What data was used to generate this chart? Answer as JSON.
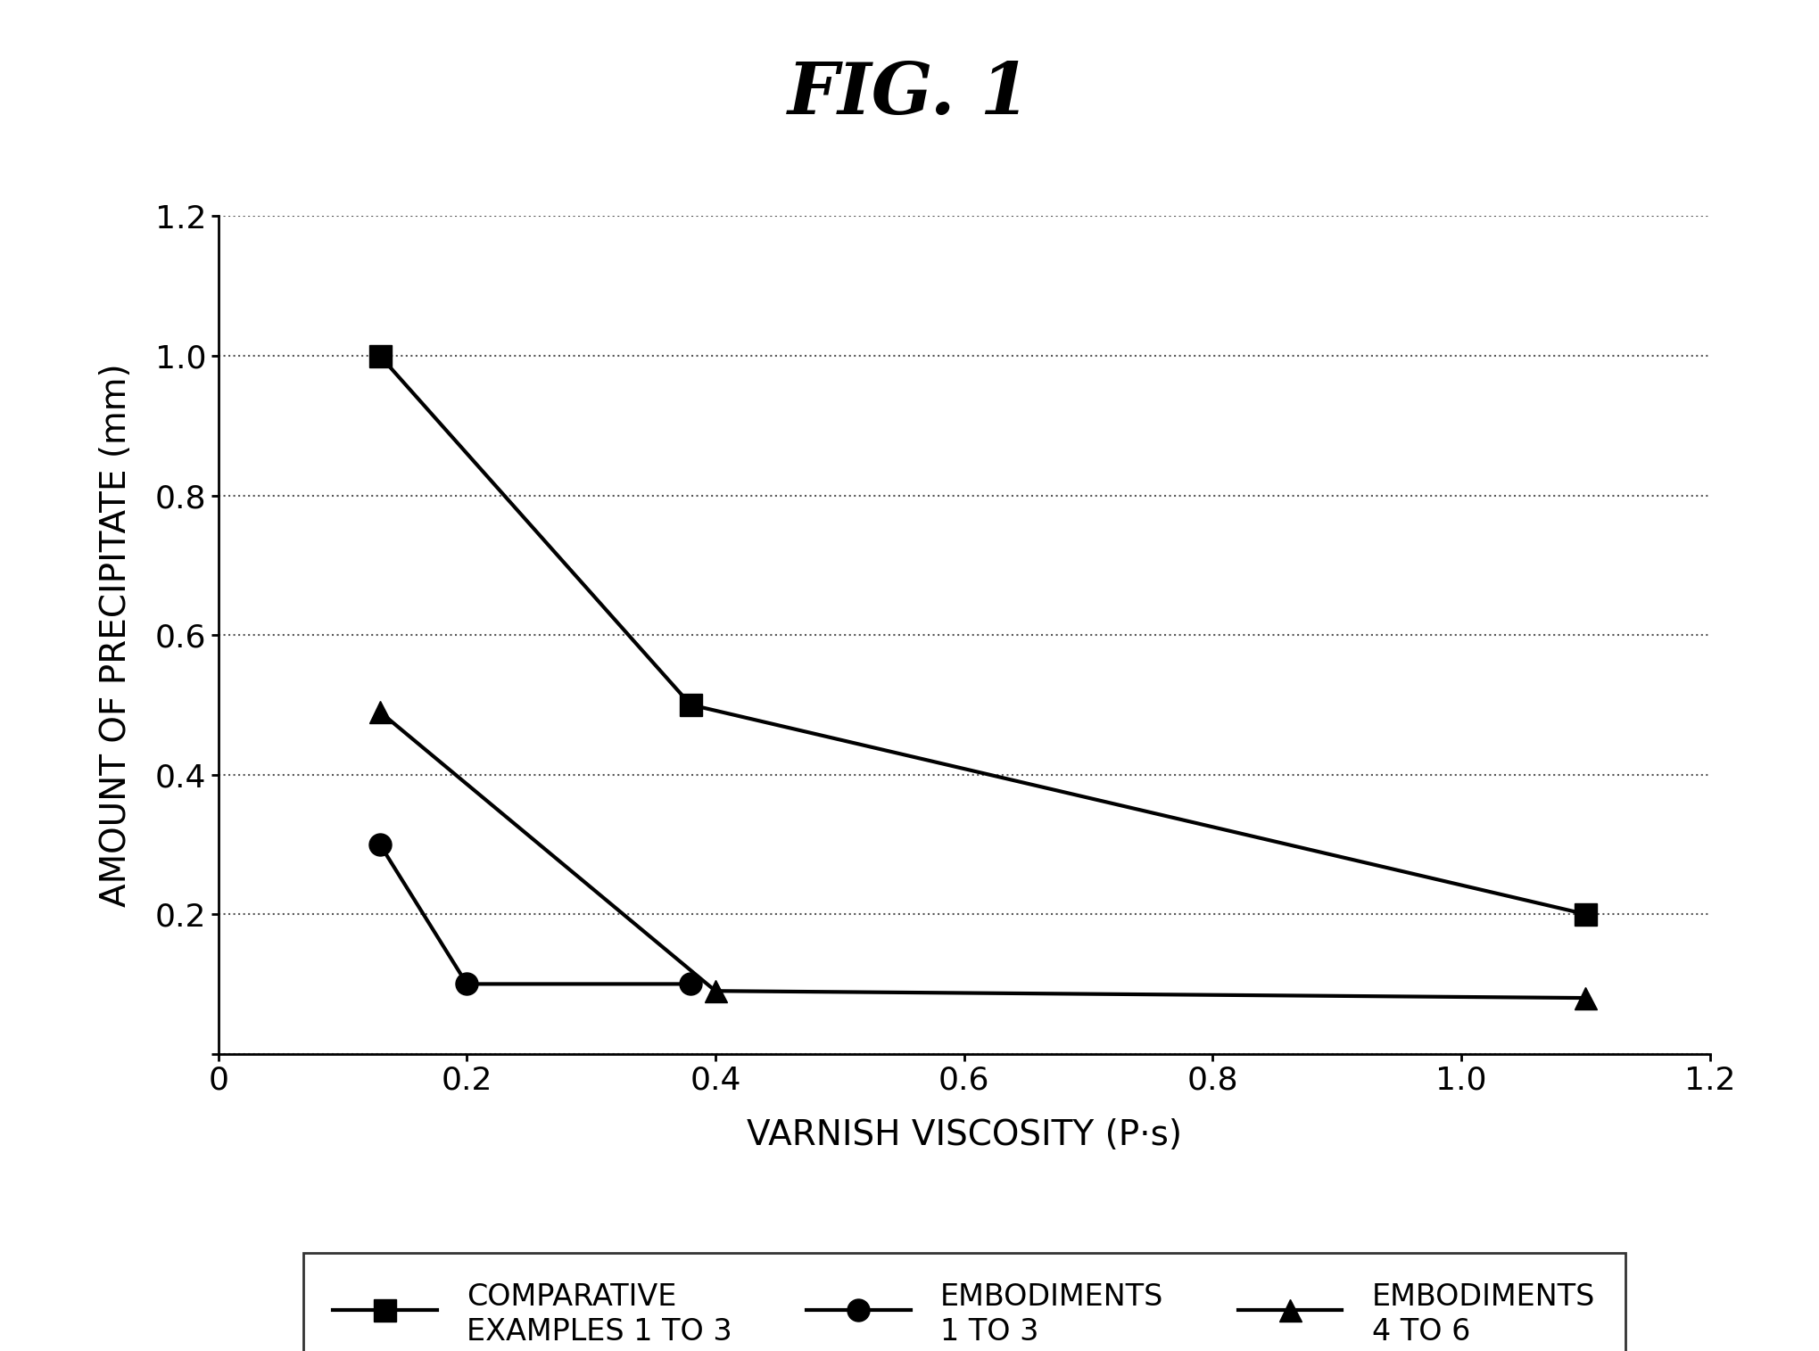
{
  "title": "FIG. 1",
  "xlabel": "VARNISH VISCOSITY (P·s)",
  "ylabel": "AMOUNT OF PRECIPITATE (mm)",
  "xlim": [
    0,
    1.2
  ],
  "ylim": [
    0,
    1.2
  ],
  "xticks": [
    0,
    0.2,
    0.4,
    0.6,
    0.8,
    1.0,
    1.2
  ],
  "yticks": [
    0,
    0.2,
    0.4,
    0.6,
    0.8,
    1.0,
    1.2
  ],
  "series": [
    {
      "label": "COMPARATIVE\nEXAMPLES 1 TO 3",
      "x": [
        0.13,
        0.38,
        1.1
      ],
      "y": [
        1.0,
        0.5,
        0.2
      ],
      "marker": "s",
      "color": "#000000",
      "markersize": 18,
      "linewidth": 3.0
    },
    {
      "label": "EMBODIMENTS\n1 TO 3",
      "x": [
        0.13,
        0.2,
        0.38
      ],
      "y": [
        0.3,
        0.1,
        0.1
      ],
      "marker": "o",
      "color": "#000000",
      "markersize": 18,
      "linewidth": 3.0
    },
    {
      "label": "EMBODIMENTS\n4 TO 6",
      "x": [
        0.13,
        0.4,
        1.1
      ],
      "y": [
        0.49,
        0.09,
        0.08
      ],
      "marker": "^",
      "color": "#000000",
      "markersize": 18,
      "linewidth": 3.0
    }
  ],
  "background_color": "#ffffff",
  "grid_color": "#555555",
  "title_fontsize": 58,
  "label_fontsize": 28,
  "tick_fontsize": 26,
  "legend_fontsize": 24
}
